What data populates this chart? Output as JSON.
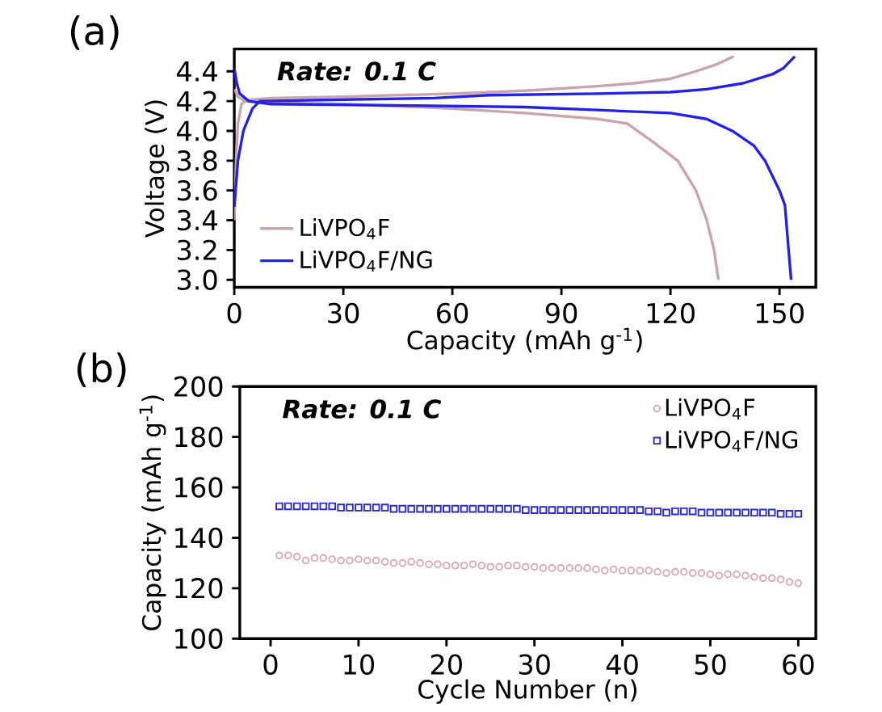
{
  "chart_data": [
    {
      "type": "line",
      "title": "(a)",
      "xlabel": "Capacity (mAh g$^{-1}$)",
      "ylabel": "Voltage (V)",
      "annotations": [
        "Rate: 0.1 C"
      ],
      "xlim": [
        0,
        160
      ],
      "ylim": [
        2.95,
        4.55
      ],
      "xticks": [
        0,
        30,
        60,
        90,
        120,
        150
      ],
      "yticks": [
        {
          "value": 3.0,
          "label": "3.0"
        },
        3.2,
        3.4,
        3.6,
        3.8,
        {
          "value": 4.0,
          "label": "4.0"
        },
        4.2,
        4.4
      ],
      "legend": "bottom left",
      "grid": false,
      "marker": "none",
      "line_style": "solid",
      "series": [
        {
          "name": "LiVPO$_{4}$F",
          "color": "#c9a4ac",
          "x": [
            0,
            0.5,
            1,
            2,
            3,
            5,
            10,
            30,
            60,
            80,
            100,
            110,
            120,
            127,
            133,
            137.4
          ],
          "values": [
            3.4,
            3.8,
            4.05,
            4.18,
            4.2,
            4.21,
            4.22,
            4.23,
            4.25,
            4.27,
            4.3,
            4.32,
            4.35,
            4.4,
            4.45,
            4.5
          ]
        },
        {
          "color": "#c9a4ac",
          "x": [
            0,
            1,
            3,
            10,
            30,
            60,
            80,
            100,
            108,
            115,
            122,
            127,
            130,
            132,
            133.2
          ],
          "values": [
            4.28,
            4.23,
            4.2,
            4.19,
            4.18,
            4.15,
            4.12,
            4.08,
            4.05,
            3.93,
            3.8,
            3.6,
            3.4,
            3.2,
            3.0
          ]
        },
        {
          "name": "LiVPO$_{4}$F/NG",
          "color": "#2222e6",
          "x": [
            0,
            1,
            2.5,
            5,
            7,
            30,
            55,
            70,
            100,
            120,
            130,
            140,
            148,
            151,
            154.2
          ],
          "values": [
            3.49,
            3.8,
            4.0,
            4.15,
            4.2,
            4.21,
            4.22,
            4.24,
            4.25,
            4.26,
            4.28,
            4.32,
            4.38,
            4.42,
            4.5
          ]
        },
        {
          "color": "#2222e6",
          "x": [
            0,
            0.7,
            1.5,
            4,
            10,
            50,
            80,
            100,
            120,
            130,
            137,
            143,
            146,
            150,
            151.5,
            152.5,
            153.2
          ],
          "values": [
            4.42,
            4.32,
            4.25,
            4.2,
            4.18,
            4.17,
            4.16,
            4.14,
            4.12,
            4.08,
            4.0,
            3.9,
            3.8,
            3.6,
            3.5,
            3.2,
            3.0
          ]
        }
      ]
    },
    {
      "type": "scatter",
      "title": "(b)",
      "xlabel": "Cycle Number (n)",
      "ylabel": "Capacity (mAh g$^{-1}$)",
      "annotations": [
        "Rate: 0.1 C"
      ],
      "xlim": [
        -3.5,
        62
      ],
      "ylim": [
        100,
        200
      ],
      "xticks": [
        0,
        10,
        20,
        30,
        40,
        50,
        60
      ],
      "yticks": [
        100,
        120,
        140,
        160,
        180,
        200
      ],
      "legend": "top right",
      "grid": false,
      "x": [
        1,
        2,
        3,
        4,
        5,
        6,
        7,
        8,
        9,
        10,
        11,
        12,
        13,
        14,
        15,
        16,
        17,
        18,
        19,
        20,
        21,
        22,
        23,
        24,
        25,
        26,
        27,
        28,
        29,
        30,
        31,
        32,
        33,
        34,
        35,
        36,
        37,
        38,
        39,
        40,
        41,
        42,
        43,
        44,
        45,
        46,
        47,
        48,
        49,
        50,
        51,
        52,
        53,
        54,
        55,
        56,
        57,
        58,
        59,
        60
      ],
      "series": [
        {
          "name": "LiVPO$_{4}$F",
          "color": "#dca8b4",
          "marker": "circle",
          "values": [
            133,
            133,
            132.5,
            131,
            132,
            132,
            131.5,
            131,
            131,
            131.5,
            131,
            131,
            130.5,
            130,
            130,
            130.5,
            130,
            129.5,
            129.5,
            129,
            129,
            129,
            129.5,
            129,
            128.5,
            128.5,
            129,
            129,
            128.5,
            128.5,
            128,
            128,
            128,
            128,
            128,
            128,
            127.5,
            127,
            127.5,
            127,
            127,
            127,
            127,
            126.5,
            126,
            126.5,
            126.5,
            126,
            126,
            125.5,
            125,
            125.5,
            125.5,
            125,
            124.5,
            124,
            124,
            123.5,
            122.5,
            122
          ]
        },
        {
          "name": "LiVPO$_{4}$F/NG",
          "color": "#2a2ad0",
          "marker": "square",
          "values": [
            152.5,
            152.5,
            152.5,
            152.5,
            152.5,
            152.5,
            152.5,
            152,
            152,
            152,
            152,
            152,
            152,
            151.5,
            151.5,
            151.5,
            151.5,
            151.5,
            151.5,
            151.5,
            151.5,
            151.5,
            151.5,
            151.5,
            151.5,
            151.5,
            151.5,
            151.5,
            151,
            151,
            151,
            151,
            151,
            151,
            151,
            151,
            151,
            151,
            151,
            151,
            151,
            151,
            150.5,
            150.5,
            150,
            150.5,
            150.5,
            150.5,
            150,
            150,
            150,
            150,
            150,
            150,
            150,
            150,
            150,
            149.5,
            149.5,
            149.5
          ]
        }
      ]
    }
  ]
}
